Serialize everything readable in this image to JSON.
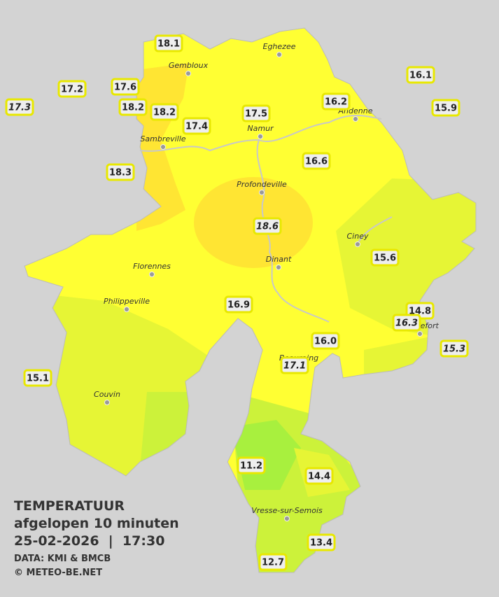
{
  "header": {
    "title": "TEMPERATUUR",
    "subtitle": "afgelopen 10 minuten",
    "datetime": "25-02-2026  |  17:30",
    "source": "DATA: KMI & BMCB",
    "copyright": "© METEO-BE.NET"
  },
  "cities": [
    "Eghezee",
    "Gembloux",
    "Andenne",
    "Namur",
    "Sambreville",
    "Profondeville",
    "Ciney",
    "Dinant",
    "Florennes",
    "Philippeville",
    "Rochefort",
    "Beauraing",
    "Couvin",
    "Vresse-sur-Semois"
  ],
  "stations": [
    {
      "label": "18.1",
      "italic": false
    },
    {
      "label": "17.2",
      "italic": false
    },
    {
      "label": "17.6",
      "italic": false
    },
    {
      "label": "17.3",
      "italic": true
    },
    {
      "label": "18.2",
      "italic": false
    },
    {
      "label": "18.2",
      "italic": false
    },
    {
      "label": "17.4",
      "italic": false
    },
    {
      "label": "17.5",
      "italic": false
    },
    {
      "label": "16.2",
      "italic": false
    },
    {
      "label": "16.1",
      "italic": false
    },
    {
      "label": "15.9",
      "italic": false
    },
    {
      "label": "18.3",
      "italic": false
    },
    {
      "label": "16.6",
      "italic": false
    },
    {
      "label": "18.6",
      "italic": true
    },
    {
      "label": "15.6",
      "italic": false
    },
    {
      "label": "16.9",
      "italic": false
    },
    {
      "label": "14.8",
      "italic": false
    },
    {
      "label": "16.3",
      "italic": true
    },
    {
      "label": "16.0",
      "italic": false
    },
    {
      "label": "15.3",
      "italic": true
    },
    {
      "label": "17.1",
      "italic": true
    },
    {
      "label": "15.1",
      "italic": false
    },
    {
      "label": "11.2",
      "italic": false
    },
    {
      "label": "14.4",
      "italic": false
    },
    {
      "label": "13.4",
      "italic": false
    },
    {
      "label": "12.7",
      "italic": false
    }
  ]
}
